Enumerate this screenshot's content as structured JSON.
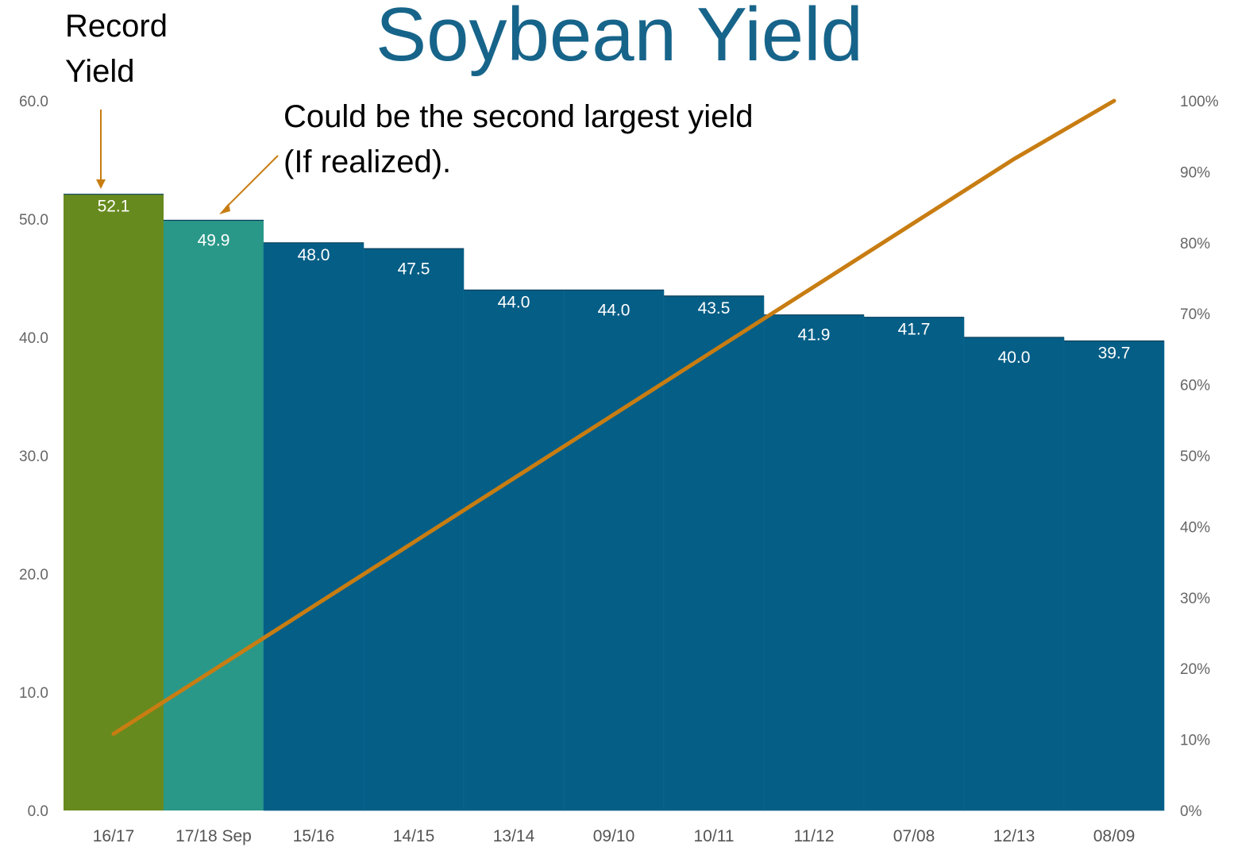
{
  "chart_data": {
    "type": "bar",
    "title": "Soybean Yield",
    "categories": [
      "16/17",
      "17/18 Sep",
      "15/16",
      "14/15",
      "13/14",
      "09/10",
      "10/11",
      "11/12",
      "07/08",
      "12/13",
      "08/09"
    ],
    "values": [
      52.1,
      49.9,
      48.0,
      47.5,
      44.0,
      44.0,
      43.5,
      41.9,
      41.7,
      40.0,
      39.7
    ],
    "bar_colors": [
      "#678a1e",
      "#2a9888",
      "#055e86",
      "#055e86",
      "#055e86",
      "#055e86",
      "#055e86",
      "#055e86",
      "#055e86",
      "#055e86",
      "#055e86"
    ],
    "y_left": {
      "ylim": [
        0,
        60
      ],
      "ticks": [
        "0.0",
        "10.0",
        "20.0",
        "30.0",
        "40.0",
        "50.0",
        "60.0"
      ]
    },
    "y_right": {
      "ylim": [
        0,
        100
      ],
      "ticks": [
        "0%",
        "10%",
        "20%",
        "30%",
        "40%",
        "50%",
        "60%",
        "70%",
        "80%",
        "90%",
        "100%"
      ]
    },
    "line_series": {
      "axis": "right",
      "color": "#c87d12",
      "values": [
        10.8,
        19.8,
        28.8,
        37.8,
        46.8,
        55.8,
        64.8,
        73.8,
        82.8,
        91.8,
        100
      ]
    },
    "grid": false,
    "legend": "none",
    "annotations": [
      {
        "lines": [
          "Record",
          "Yield"
        ],
        "points_to": "16/17"
      },
      {
        "lines": [
          "Could be the second largest yield",
          "(If realized)."
        ],
        "points_to": "17/18 Sep"
      }
    ],
    "annotation_color": "#c87d12"
  }
}
